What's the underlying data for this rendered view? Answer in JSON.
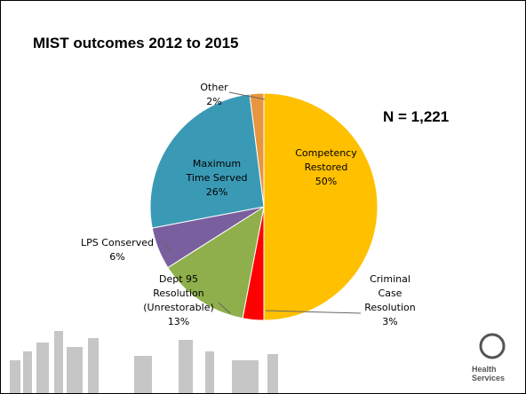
{
  "chart_data": {
    "type": "pie",
    "title": "MIST outcomes 2012 to 2015",
    "annotation": "N = 1,221",
    "categories": [
      "Competency Restored",
      "Criminal Case Resolution",
      "Dept 95 Resolution (Unrestorable)",
      "LPS Conserved",
      "Maximum Time Served",
      "Other"
    ],
    "values": [
      50,
      3,
      13,
      6,
      26,
      2
    ],
    "value_labels": [
      "50%",
      "3%",
      "13%",
      "6%",
      "26%",
      "2%"
    ],
    "colors": [
      "#ffc000",
      "#ff0000",
      "#8faf4c",
      "#7a5f9e",
      "#3a9ab5",
      "#e8953f"
    ]
  },
  "logo": "Health Services"
}
